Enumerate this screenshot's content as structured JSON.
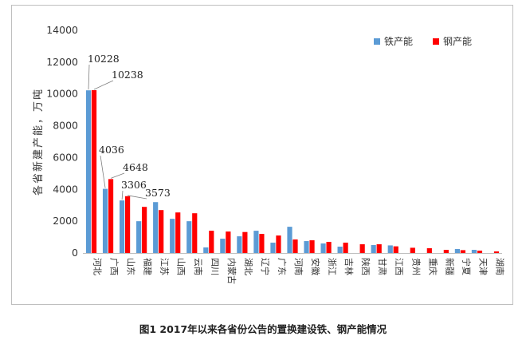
{
  "caption": "图1  2017年以来各省份公告的置换建设铁、钢产能情况",
  "chart_data": {
    "type": "bar",
    "ylabel": "各省新建产能，万吨",
    "ylim": [
      0,
      14000
    ],
    "yticks": [
      0,
      2000,
      4000,
      6000,
      8000,
      10000,
      12000,
      14000
    ],
    "legend_position": "top-right",
    "categories": [
      "河北",
      "广西",
      "山东",
      "福建",
      "江苏",
      "山西",
      "云南",
      "四川",
      "内蒙古",
      "湖北",
      "辽宁",
      "广东",
      "河南",
      "安徽",
      "浙江",
      "吉林",
      "陕西",
      "甘肃",
      "江西",
      "贵州",
      "重庆",
      "新疆",
      "宁夏",
      "天津",
      "湖南"
    ],
    "series": [
      {
        "name": "铁产能",
        "color": "#5b9bd5",
        "values": [
          10228,
          4036,
          3306,
          2000,
          3200,
          2150,
          2000,
          350,
          900,
          1050,
          1400,
          650,
          1650,
          750,
          600,
          400,
          0,
          500,
          480,
          0,
          0,
          0,
          250,
          200,
          0
        ]
      },
      {
        "name": "钢产能",
        "color": "#ff0000",
        "values": [
          10238,
          4648,
          3573,
          2900,
          2700,
          2550,
          2500,
          1400,
          1350,
          1320,
          1200,
          1100,
          850,
          800,
          700,
          650,
          550,
          550,
          420,
          330,
          300,
          200,
          180,
          150,
          100
        ]
      }
    ],
    "annotations": [
      {
        "text": "10228",
        "category": "河北",
        "series": 0
      },
      {
        "text": "10238",
        "category": "河北",
        "series": 1
      },
      {
        "text": "4036",
        "category": "广西",
        "series": 0
      },
      {
        "text": "4648",
        "category": "广西",
        "series": 1
      },
      {
        "text": "3306",
        "category": "山东",
        "series": 0
      },
      {
        "text": "3573",
        "category": "山东",
        "series": 1
      }
    ]
  }
}
